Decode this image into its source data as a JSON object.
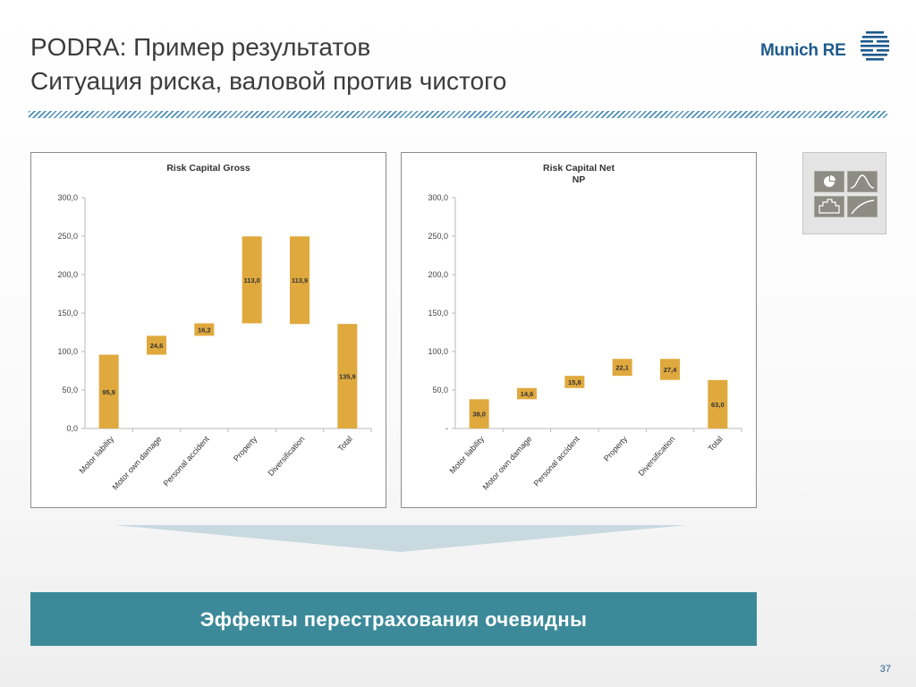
{
  "slide": {
    "title_line1": "PODRA: Пример результатов",
    "title_line2": "Ситуация риска, валовой против чистого",
    "logo_text": "Munich RE",
    "banner_text": "Эффекты перестрахования очевидны",
    "page_number": "37",
    "colors": {
      "bar": "#e0a93e",
      "banner": "#3c8a99",
      "title": "#3c3c3c",
      "logo": "#1e5a8c",
      "hatch": "#4a8fb8",
      "arrow": "#c9d9e0"
    },
    "icons": [
      "pie-chart-icon",
      "bell-curve-icon",
      "bar-chart-icon",
      "growth-curve-icon"
    ]
  },
  "chart_data": [
    {
      "type": "bar",
      "subtype": "waterfall",
      "title": "Risk Capital Gross",
      "categories": [
        "Motor liability",
        "Motor own damage",
        "Personal accident",
        "Property",
        "Diversification",
        "Total"
      ],
      "values": [
        95.9,
        24.6,
        16.2,
        113.0,
        113.9,
        135.9
      ],
      "bars": [
        {
          "label": "Motor liability",
          "start": 0,
          "end": 95.9,
          "value_label": "95,9"
        },
        {
          "label": "Motor own damage",
          "start": 95.9,
          "end": 120.5,
          "value_label": "24,6"
        },
        {
          "label": "Personal accident",
          "start": 120.5,
          "end": 136.7,
          "value_label": "16,2"
        },
        {
          "label": "Property",
          "start": 136.7,
          "end": 249.7,
          "value_label": "113,0"
        },
        {
          "label": "Diversification",
          "start": 249.7,
          "end": 135.8,
          "value_label": "113,9"
        },
        {
          "label": "Total",
          "start": 0,
          "end": 135.9,
          "value_label": "135,9"
        }
      ],
      "yticks": [
        "0,0",
        "50,0",
        "100,0",
        "150,0",
        "200,0",
        "250,0",
        "300,0"
      ],
      "ylim": [
        0,
        300
      ],
      "xlabel": "",
      "ylabel": "",
      "grid": false,
      "legend": "none"
    },
    {
      "type": "bar",
      "subtype": "waterfall",
      "title": "Risk Capital Net",
      "subtitle": "NP",
      "categories": [
        "Motor liability",
        "Motor own damage",
        "Personal accident",
        "Property",
        "Diversification",
        "Total"
      ],
      "values": [
        38.0,
        14.6,
        15.8,
        22.1,
        27.4,
        63.0
      ],
      "bars": [
        {
          "label": "Motor liability",
          "start": 0,
          "end": 38.0,
          "value_label": "38,0"
        },
        {
          "label": "Motor own damage",
          "start": 38.0,
          "end": 52.6,
          "value_label": "14,6"
        },
        {
          "label": "Personal accident",
          "start": 52.6,
          "end": 68.4,
          "value_label": "15,8"
        },
        {
          "label": "Property",
          "start": 68.4,
          "end": 90.5,
          "value_label": "22,1"
        },
        {
          "label": "Diversification",
          "start": 90.5,
          "end": 63.1,
          "value_label": "27,4"
        },
        {
          "label": "Total",
          "start": 0,
          "end": 63.0,
          "value_label": "63,0"
        }
      ],
      "yticks": [
        "-",
        "50,0",
        "100,0",
        "150,0",
        "200,0",
        "250,0",
        "300,0"
      ],
      "ylim": [
        0,
        300
      ],
      "xlabel": "",
      "ylabel": "",
      "grid": false,
      "legend": "none"
    }
  ]
}
